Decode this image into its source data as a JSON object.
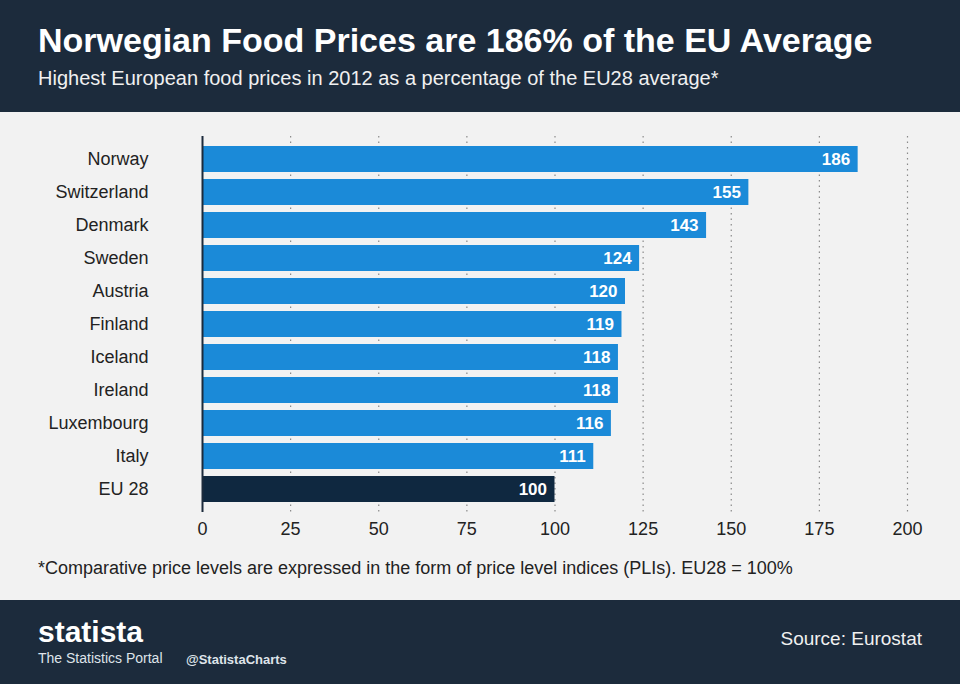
{
  "chart_data": {
    "type": "bar",
    "orientation": "horizontal",
    "title": "Norwegian Food Prices are 186% of the EU Average",
    "subtitle": "Highest European food prices in 2012 as a percentage of the EU28 average*",
    "categories": [
      "Norway",
      "Switzerland",
      "Denmark",
      "Sweden",
      "Austria",
      "Finland",
      "Iceland",
      "Ireland",
      "Luxembourg",
      "Italy",
      "EU 28"
    ],
    "values": [
      186,
      155,
      143,
      124,
      120,
      119,
      118,
      118,
      116,
      111,
      100
    ],
    "colors": [
      "#1b8ad8",
      "#1b8ad8",
      "#1b8ad8",
      "#1b8ad8",
      "#1b8ad8",
      "#1b8ad8",
      "#1b8ad8",
      "#1b8ad8",
      "#1b8ad8",
      "#1b8ad8",
      "#0f2840"
    ],
    "xlim": [
      0,
      200
    ],
    "xticks": [
      0,
      25,
      50,
      75,
      100,
      125,
      150,
      175,
      200
    ],
    "grid": true,
    "data_labels": true,
    "footnote": "*Comparative price levels are expressed in the form of price level indices (PLIs). EU28 = 100%",
    "brand": "statista",
    "brand_tagline": "The Statistics Portal",
    "handle": "@StatistaCharts",
    "source": "Source: Eurostat"
  }
}
